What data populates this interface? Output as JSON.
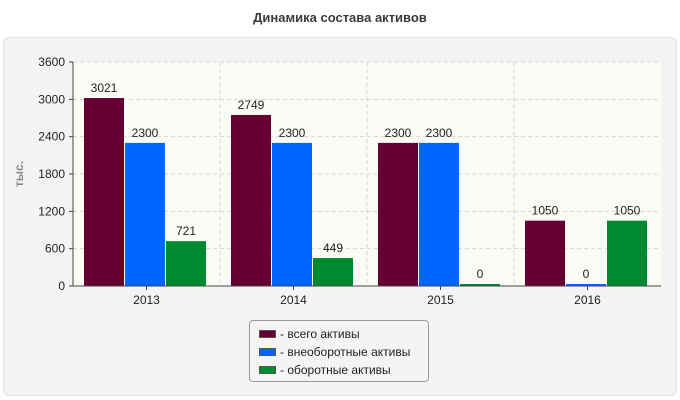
{
  "chart_data": {
    "type": "bar",
    "title": "Динамика состава активов",
    "xlabel": "",
    "ylabel": "тыс.",
    "categories": [
      "2013",
      "2014",
      "2015",
      "2016"
    ],
    "ylim": [
      0,
      3600
    ],
    "yticks": [
      0,
      600,
      1200,
      1800,
      2400,
      3000,
      3600
    ],
    "grid": true,
    "legend_position": "bottom",
    "series": [
      {
        "name": "- всего активы",
        "color": "#660033",
        "values": [
          3021,
          2749,
          2300,
          1050
        ]
      },
      {
        "name": "- внеоборотные активы",
        "color": "#0066ff",
        "values": [
          2300,
          2300,
          2300,
          0
        ]
      },
      {
        "name": "- оборотные активы",
        "color": "#008a30",
        "values": [
          721,
          449,
          0,
          1050
        ]
      }
    ]
  }
}
